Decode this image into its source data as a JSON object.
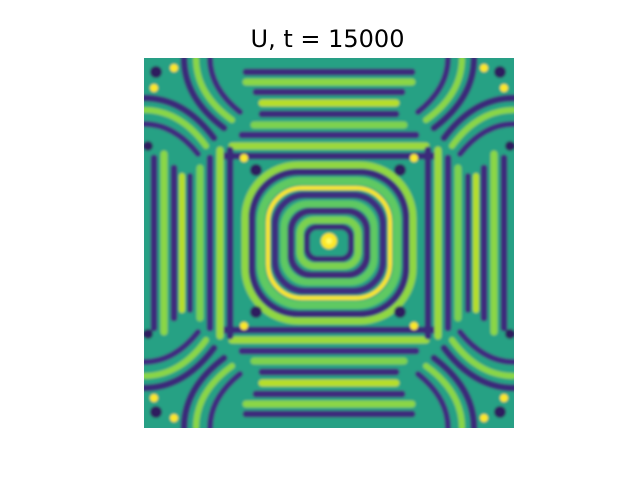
{
  "figure": {
    "title": "U, t = 15000"
  },
  "image": {
    "description_name": "turing-pattern-heatmap",
    "colormap": "viridis",
    "colors": {
      "low": "#440154",
      "mid_low": "#3b528b",
      "mid": "#21918c",
      "mid_high": "#5ec962",
      "high": "#fde725"
    }
  }
}
